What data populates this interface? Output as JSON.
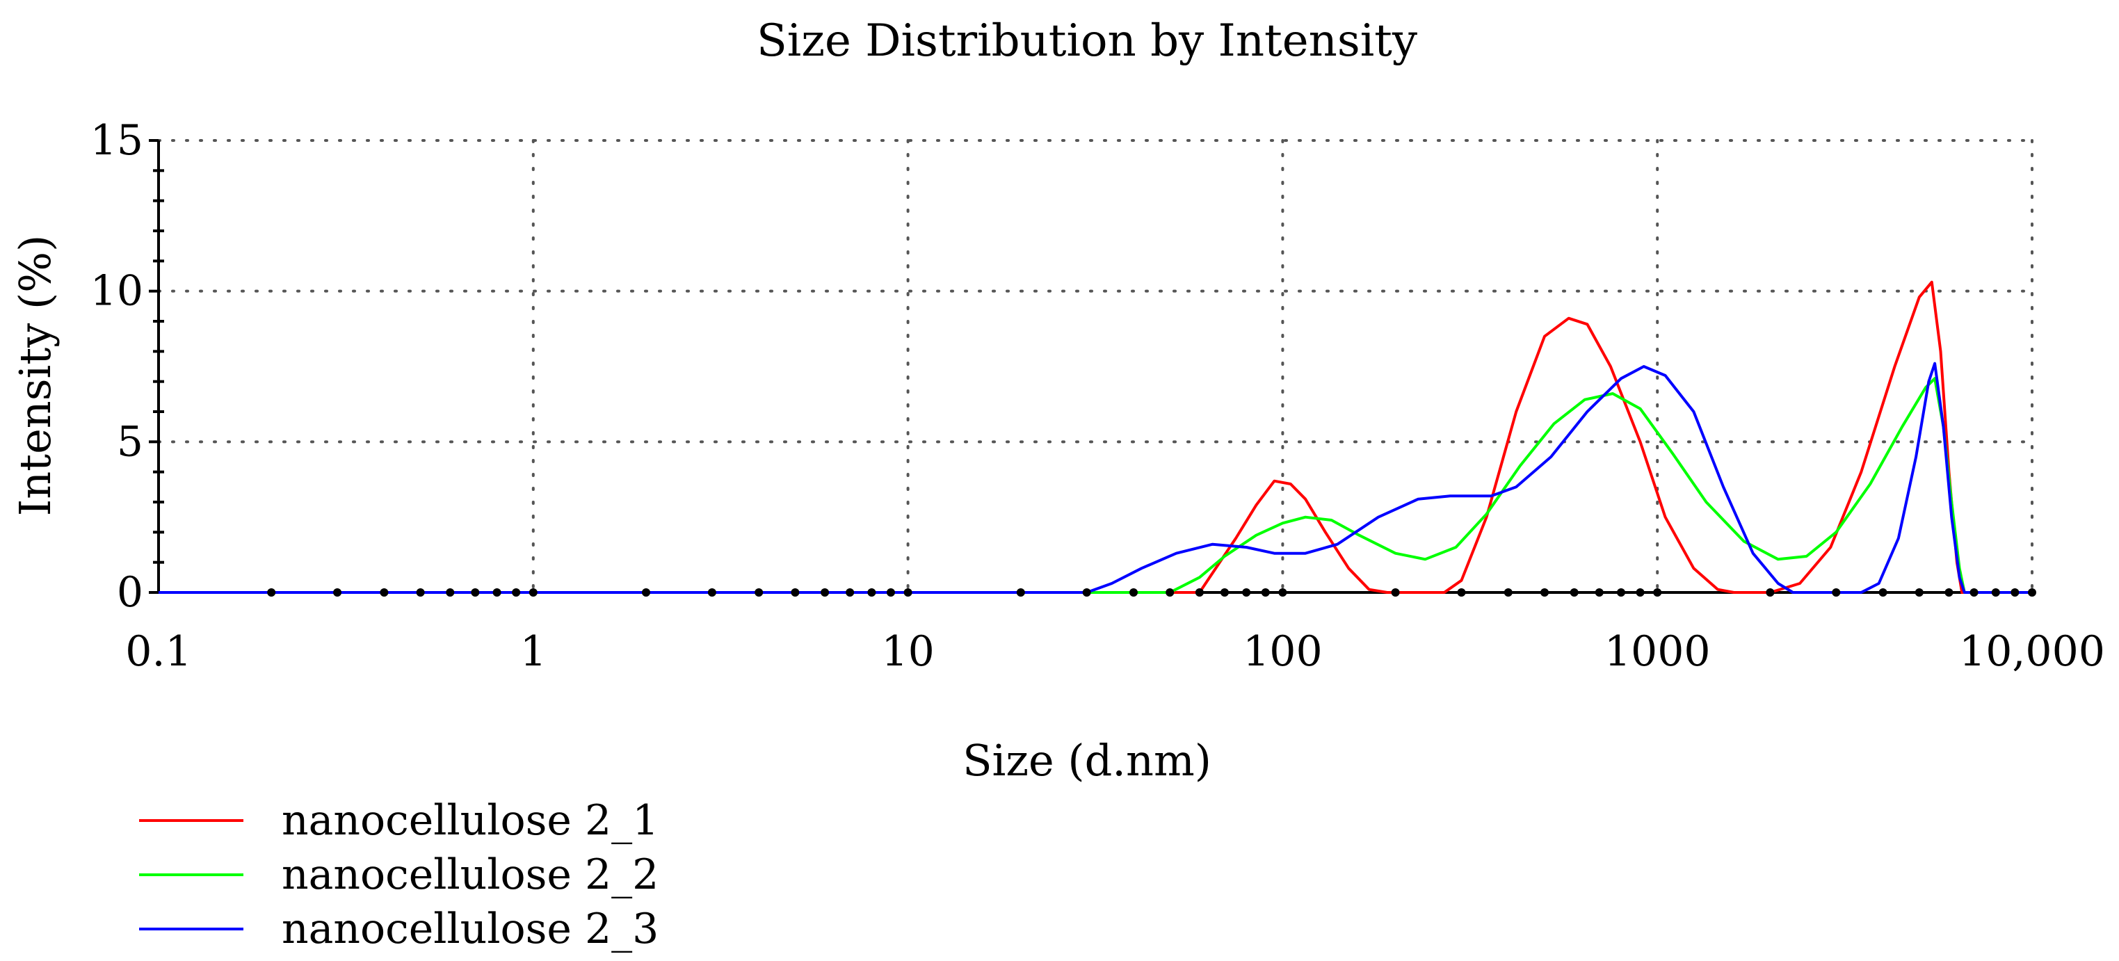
{
  "chart_data": {
    "type": "line",
    "title": "Size Distribution by Intensity",
    "xlabel": "Size (d.nm)",
    "ylabel": "Intensity (%)",
    "x_scale": "log",
    "xlim": [
      0.1,
      10000
    ],
    "ylim": [
      0,
      15
    ],
    "x_ticks": [
      {
        "value": 0.1,
        "label": "0.1"
      },
      {
        "value": 1,
        "label": "1"
      },
      {
        "value": 10,
        "label": "10"
      },
      {
        "value": 100,
        "label": "100"
      },
      {
        "value": 1000,
        "label": "1000"
      },
      {
        "value": 10000,
        "label": "10,000"
      }
    ],
    "y_ticks": [
      {
        "value": 0,
        "label": "0"
      },
      {
        "value": 5,
        "label": "5"
      },
      {
        "value": 10,
        "label": "10"
      },
      {
        "value": 15,
        "label": "15"
      }
    ],
    "grid": "dotted",
    "legend_position": "bottom-left",
    "series": [
      {
        "name": "nanocellulose 2_1",
        "color": "#ff0000",
        "points": [
          [
            0.1,
            0
          ],
          [
            60,
            0
          ],
          [
            75,
            1.8
          ],
          [
            85,
            2.9
          ],
          [
            95,
            3.7
          ],
          [
            105,
            3.6
          ],
          [
            115,
            3.1
          ],
          [
            130,
            2.0
          ],
          [
            150,
            0.8
          ],
          [
            170,
            0.1
          ],
          [
            190,
            0
          ],
          [
            270,
            0
          ],
          [
            300,
            0.4
          ],
          [
            350,
            2.5
          ],
          [
            420,
            6.0
          ],
          [
            500,
            8.5
          ],
          [
            580,
            9.1
          ],
          [
            650,
            8.9
          ],
          [
            750,
            7.5
          ],
          [
            900,
            5.0
          ],
          [
            1050,
            2.5
          ],
          [
            1250,
            0.8
          ],
          [
            1450,
            0.1
          ],
          [
            1600,
            0
          ],
          [
            2000,
            0
          ],
          [
            2400,
            0.3
          ],
          [
            2900,
            1.5
          ],
          [
            3500,
            4.0
          ],
          [
            4300,
            7.5
          ],
          [
            5000,
            9.8
          ],
          [
            5400,
            10.3
          ],
          [
            5700,
            8.0
          ],
          [
            6000,
            4.0
          ],
          [
            6300,
            1.0
          ],
          [
            6500,
            0
          ],
          [
            10000,
            0
          ]
        ]
      },
      {
        "name": "nanocellulose 2_2",
        "color": "#00ff00",
        "points": [
          [
            0.1,
            0
          ],
          [
            50,
            0
          ],
          [
            60,
            0.5
          ],
          [
            70,
            1.2
          ],
          [
            85,
            1.9
          ],
          [
            100,
            2.3
          ],
          [
            115,
            2.5
          ],
          [
            135,
            2.4
          ],
          [
            160,
            1.9
          ],
          [
            200,
            1.3
          ],
          [
            240,
            1.1
          ],
          [
            290,
            1.5
          ],
          [
            350,
            2.6
          ],
          [
            430,
            4.2
          ],
          [
            530,
            5.6
          ],
          [
            640,
            6.4
          ],
          [
            760,
            6.6
          ],
          [
            900,
            6.1
          ],
          [
            1100,
            4.6
          ],
          [
            1350,
            3.0
          ],
          [
            1700,
            1.7
          ],
          [
            2100,
            1.1
          ],
          [
            2500,
            1.2
          ],
          [
            3000,
            2.0
          ],
          [
            3700,
            3.6
          ],
          [
            4500,
            5.5
          ],
          [
            5200,
            6.8
          ],
          [
            5500,
            7.1
          ],
          [
            5800,
            5.5
          ],
          [
            6100,
            3.0
          ],
          [
            6400,
            0.8
          ],
          [
            6600,
            0
          ],
          [
            10000,
            0
          ]
        ]
      },
      {
        "name": "nanocellulose 2_3",
        "color": "#0000ff",
        "points": [
          [
            0.1,
            0
          ],
          [
            30,
            0
          ],
          [
            35,
            0.3
          ],
          [
            42,
            0.8
          ],
          [
            52,
            1.3
          ],
          [
            65,
            1.6
          ],
          [
            80,
            1.5
          ],
          [
            95,
            1.3
          ],
          [
            115,
            1.3
          ],
          [
            140,
            1.6
          ],
          [
            180,
            2.5
          ],
          [
            230,
            3.1
          ],
          [
            280,
            3.2
          ],
          [
            360,
            3.2
          ],
          [
            420,
            3.5
          ],
          [
            520,
            4.5
          ],
          [
            650,
            6.0
          ],
          [
            800,
            7.1
          ],
          [
            920,
            7.5
          ],
          [
            1050,
            7.2
          ],
          [
            1250,
            6.0
          ],
          [
            1500,
            3.5
          ],
          [
            1800,
            1.3
          ],
          [
            2100,
            0.3
          ],
          [
            2300,
            0
          ],
          [
            3500,
            0
          ],
          [
            3900,
            0.3
          ],
          [
            4400,
            1.8
          ],
          [
            4900,
            4.5
          ],
          [
            5300,
            7.0
          ],
          [
            5500,
            7.6
          ],
          [
            5800,
            5.5
          ],
          [
            6100,
            2.5
          ],
          [
            6400,
            0.5
          ],
          [
            6600,
            0
          ],
          [
            10000,
            0
          ]
        ]
      }
    ],
    "baseline_markers": [
      0.2,
      0.3,
      0.4,
      0.5,
      0.6,
      0.7,
      0.8,
      0.9,
      1,
      2,
      3,
      4,
      5,
      6,
      7,
      8,
      9,
      10,
      20,
      30,
      40,
      50,
      60,
      70,
      80,
      90,
      100,
      200,
      300,
      400,
      500,
      600,
      700,
      800,
      900,
      1000,
      2000,
      3000,
      4000,
      5000,
      6000,
      7000,
      8000,
      9000,
      10000
    ]
  }
}
